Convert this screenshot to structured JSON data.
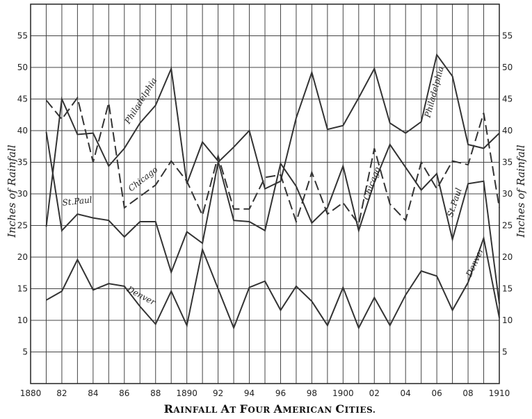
{
  "chart_data": {
    "type": "line",
    "title": "Rainfall at Four American Cities.",
    "ylabel": "Inches of Rainfall",
    "ylabel_right": "Inches of Rainfall",
    "xlim": [
      1880,
      1910
    ],
    "ylim": [
      0,
      60
    ],
    "grid": true,
    "x_tick_labels": [
      {
        "x": 1880,
        "label": "1880"
      },
      {
        "x": 1882,
        "label": "82"
      },
      {
        "x": 1884,
        "label": "84"
      },
      {
        "x": 1886,
        "label": "86"
      },
      {
        "x": 1888,
        "label": "88"
      },
      {
        "x": 1890,
        "label": "1890"
      },
      {
        "x": 1892,
        "label": "92"
      },
      {
        "x": 1894,
        "label": "94"
      },
      {
        "x": 1896,
        "label": "96"
      },
      {
        "x": 1898,
        "label": "98"
      },
      {
        "x": 1900,
        "label": "1900"
      },
      {
        "x": 1902,
        "label": "02"
      },
      {
        "x": 1904,
        "label": "04"
      },
      {
        "x": 1906,
        "label": "06"
      },
      {
        "x": 1908,
        "label": "08"
      },
      {
        "x": 1910,
        "label": "1910"
      }
    ],
    "y_ticks": [
      5,
      10,
      15,
      20,
      25,
      30,
      35,
      40,
      45,
      50,
      55
    ],
    "x": [
      1881,
      1882,
      1883,
      1884,
      1885,
      1886,
      1887,
      1888,
      1889,
      1890,
      1891,
      1892,
      1893,
      1894,
      1895,
      1896,
      1897,
      1898,
      1899,
      1900,
      1901,
      1902,
      1903,
      1904,
      1905,
      1906,
      1907,
      1908,
      1909,
      1910
    ],
    "series": [
      {
        "name": "Philadelphia",
        "style": "solid",
        "values": [
          39.8,
          24.2,
          26.8,
          26.2,
          25.8,
          23.2,
          25.6,
          25.6,
          17.6,
          24.0,
          22.2,
          35.0,
          37.4,
          40.0,
          30.8,
          32.0,
          42.0,
          49.2,
          40.2,
          40.8,
          45.2,
          49.8,
          41.2,
          39.6,
          41.4,
          52.0,
          48.6,
          37.8,
          37.2,
          39.6
        ]
      },
      {
        "name": "Chicago",
        "style": "dashed",
        "values": [
          44.8,
          41.8,
          45.2,
          35.0,
          44.4,
          27.8,
          29.6,
          31.4,
          35.2,
          32.0,
          26.6,
          36.0,
          27.6,
          27.6,
          32.6,
          33.0,
          25.6,
          33.4,
          26.8,
          28.6,
          25.2,
          37.2,
          28.4,
          25.8,
          35.0,
          30.8,
          35.2,
          34.6,
          42.8,
          27.8
        ]
      },
      {
        "name": "St. Paul",
        "style": "solid",
        "values": [
          24.8,
          45.0,
          39.4,
          39.6,
          34.4,
          37.2,
          41.2,
          44.0,
          49.8,
          31.6,
          38.2,
          35.2,
          25.8,
          25.6,
          24.2,
          34.8,
          31.2,
          25.4,
          27.8,
          34.4,
          24.2,
          31.8,
          37.8,
          34.2,
          30.6,
          33.2,
          22.8,
          31.6,
          32.0,
          12.6
        ]
      },
      {
        "name": "Denver",
        "style": "solid",
        "values": [
          13.2,
          14.6,
          19.6,
          14.8,
          15.8,
          15.4,
          12.2,
          9.4,
          14.6,
          9.2,
          21.2,
          15.0,
          8.8,
          15.2,
          16.2,
          11.6,
          15.4,
          13.0,
          9.2,
          15.2,
          8.8,
          13.6,
          9.2,
          14.0,
          17.8,
          17.0,
          11.6,
          16.0,
          23.0,
          10.4
        ]
      }
    ],
    "annotations": [
      {
        "text": "Philadelphia",
        "series": "Philadelphia",
        "x": 1887.2,
        "y": 44.5,
        "angle": -58
      },
      {
        "text": "Chicago",
        "series": "Chicago",
        "x": 1887.3,
        "y": 32.0,
        "angle": -38
      },
      {
        "text": "St.Paul",
        "series": "St. Paul",
        "x": 1883.0,
        "y": 28.4,
        "angle": -6
      },
      {
        "text": "Denver",
        "series": "Denver",
        "x": 1887.0,
        "y": 13.5,
        "angle": 28
      },
      {
        "text": "Chicago",
        "series": "Chicago",
        "x": 1902.0,
        "y": 31.5,
        "angle": -70
      },
      {
        "text": "Philadelphia",
        "series": "Philadelphia",
        "x": 1906.0,
        "y": 46.0,
        "angle": -75
      },
      {
        "text": "St.Paul",
        "series": "St. Paul",
        "x": 1907.3,
        "y": 28.5,
        "angle": -72
      },
      {
        "text": "Denver",
        "series": "Denver",
        "x": 1908.6,
        "y": 19.0,
        "angle": -65
      }
    ]
  }
}
